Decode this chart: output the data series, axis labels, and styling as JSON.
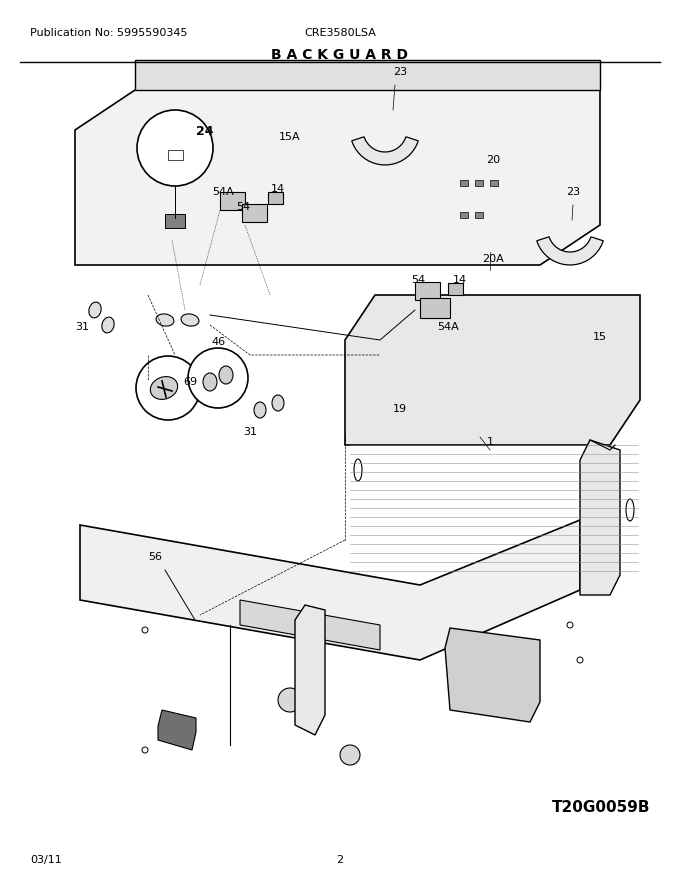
{
  "pub_no": "Publication No: 5995590345",
  "model": "CRE3580LSA",
  "section": "B A C K G U A R D",
  "diagram_id": "T20G0059B",
  "date": "03/11",
  "page": "2",
  "bg_color": "#ffffff",
  "line_color": "#000000"
}
